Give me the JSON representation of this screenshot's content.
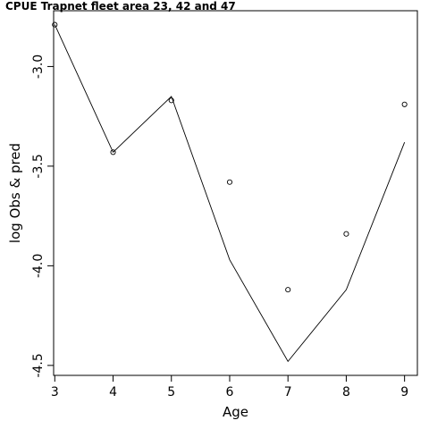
{
  "chart_data": {
    "type": "line",
    "title": "CPUE Trapnet fleet area 23, 42 and 47",
    "xlabel": "Age",
    "ylabel": "log Obs & pred",
    "x": [
      3,
      4,
      5,
      6,
      7,
      8,
      9
    ],
    "xlim": [
      2.98,
      9.22
    ],
    "ylim": [
      -4.55,
      -2.72
    ],
    "xticks": [
      "3",
      "4",
      "5",
      "6",
      "7",
      "8",
      "9"
    ],
    "yticks": [
      "-3.0",
      "-3.5",
      "-4.0",
      "-4.5"
    ],
    "ytick_values": [
      -3.0,
      -3.5,
      -4.0,
      -4.5
    ],
    "series": [
      {
        "kind": "line",
        "values": [
          -2.79,
          -3.43,
          -3.15,
          -3.97,
          -4.48,
          -4.12,
          -3.38
        ]
      },
      {
        "kind": "points",
        "marker": "open-circle",
        "values": [
          -2.79,
          -3.43,
          -3.17,
          -3.58,
          -4.12,
          -3.84,
          -3.19
        ]
      }
    ],
    "grid": false,
    "legend": "none"
  }
}
